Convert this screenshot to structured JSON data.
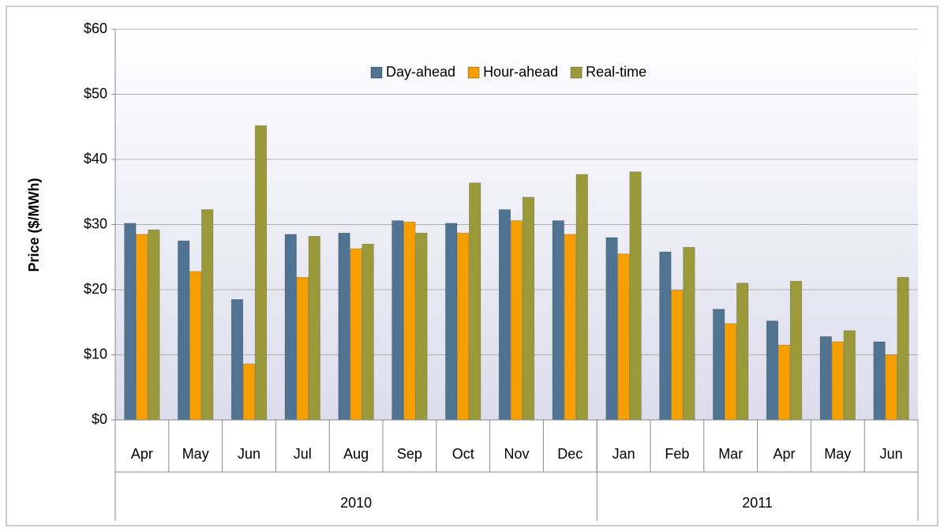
{
  "chart_data": {
    "type": "bar",
    "y_label": "Price ($/MWh)",
    "categories": [
      "Apr",
      "May",
      "Jun",
      "Jul",
      "Aug",
      "Sep",
      "Oct",
      "Nov",
      "Dec",
      "Jan",
      "Feb",
      "Mar",
      "Apr",
      "May",
      "Jun"
    ],
    "groups": [
      {
        "name": "2010",
        "count": 9
      },
      {
        "name": "2011",
        "count": 6
      }
    ],
    "series": [
      {
        "name": "Day-ahead",
        "color": "#4f7391",
        "values": [
          30.2,
          27.5,
          18.5,
          28.5,
          28.7,
          30.6,
          30.2,
          32.3,
          30.6,
          28.0,
          25.8,
          17.0,
          15.2,
          12.8,
          12.0
        ]
      },
      {
        "name": "Hour-ahead",
        "color": "#f5a000",
        "values": [
          28.5,
          22.8,
          8.6,
          21.9,
          26.3,
          30.4,
          28.7,
          30.6,
          28.5,
          25.5,
          19.9,
          14.8,
          11.5,
          12.0,
          10.0
        ]
      },
      {
        "name": "Real-time",
        "color": "#9a9a3a",
        "values": [
          29.2,
          32.3,
          45.2,
          28.2,
          27.0,
          28.7,
          36.4,
          34.2,
          37.7,
          38.1,
          26.5,
          21.0,
          21.3,
          13.7,
          21.9
        ]
      }
    ],
    "ylim": [
      0,
      60
    ],
    "yticks": [
      {
        "value": 0,
        "label": "$0"
      },
      {
        "value": 10,
        "label": "$10"
      },
      {
        "value": 20,
        "label": "$20"
      },
      {
        "value": 30,
        "label": "$30"
      },
      {
        "value": 40,
        "label": "$40"
      },
      {
        "value": 50,
        "label": "$50"
      },
      {
        "value": 60,
        "label": "$60"
      }
    ],
    "grid": true,
    "legend": "top"
  }
}
